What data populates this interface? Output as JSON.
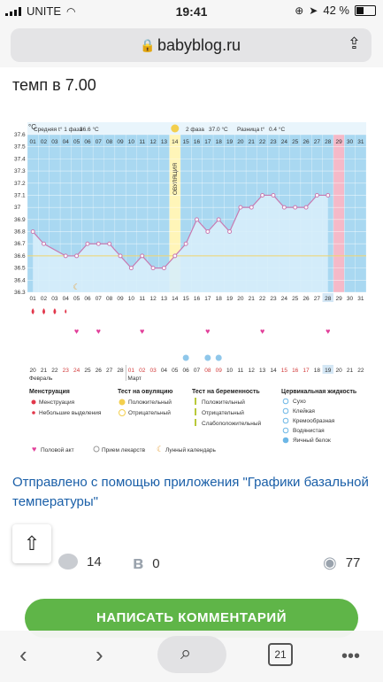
{
  "status": {
    "carrier": "UNITE",
    "time": "19:41",
    "battery": "42 %"
  },
  "browser": {
    "url": "babyblog.ru"
  },
  "article": {
    "snippet": "темп в 7.00"
  },
  "chart_data": {
    "type": "line",
    "ylabel": "°C",
    "ylim": [
      36.3,
      37.6
    ],
    "yticks": [
      "37.6",
      "37.5",
      "37.4",
      "37.3",
      "37.2",
      "37.1",
      "37",
      "36.9",
      "36.8",
      "36.7",
      "36.6",
      "36.5",
      "36.4",
      "36.3"
    ],
    "phase1_label": "Средняя t° 1 фаза",
    "phase1_value": "36.6 °C",
    "phase2_label": "2 фаза",
    "phase2_value": "37.0 °C",
    "diff_label": "Разница t°",
    "diff_value": "0.4 °C",
    "ovulation_label": "ОВУЛЯЦИЯ",
    "cycle_days": [
      "01",
      "02",
      "03",
      "04",
      "05",
      "06",
      "07",
      "08",
      "09",
      "10",
      "11",
      "12",
      "13",
      "14",
      "15",
      "16",
      "17",
      "18",
      "19",
      "20",
      "21",
      "22",
      "23",
      "24",
      "25",
      "26",
      "27",
      "28",
      "29",
      "30",
      "31"
    ],
    "dates": [
      "20",
      "21",
      "22",
      "23",
      "24",
      "25",
      "26",
      "27",
      "28",
      "01",
      "02",
      "03",
      "04",
      "05",
      "06",
      "07",
      "08",
      "09",
      "10",
      "11",
      "12",
      "13",
      "14",
      "15",
      "16",
      "17",
      "18",
      "19",
      "20",
      "21",
      "22"
    ],
    "month1": "Февраль",
    "month2": "Март",
    "temps": [
      36.8,
      36.7,
      null,
      36.6,
      36.6,
      36.7,
      36.7,
      36.7,
      36.6,
      36.5,
      36.6,
      36.5,
      36.5,
      36.6,
      36.7,
      36.9,
      36.8,
      36.9,
      36.8,
      37.0,
      37.0,
      37.1,
      37.1,
      37.0,
      37.0,
      37.0,
      37.1,
      37.1,
      null,
      null,
      null
    ],
    "coverline": 36.6,
    "ovulation_day": 14,
    "today_day": 28,
    "period_next_day": 29,
    "legend": {
      "menstruation_title": "Менструация",
      "menstruation_items": [
        "Менструация",
        "Небольшие выделения"
      ],
      "ovulation_test_title": "Тест на овуляцию",
      "ovulation_test_items": [
        "Положительный",
        "Отрицательный"
      ],
      "pregnancy_test_title": "Тест на беременность",
      "pregnancy_test_items": [
        "Положительный",
        "Отрицательный",
        "Слабоположительный"
      ],
      "cervical_title": "Цервикальная жидкость",
      "cervical_items": [
        "Сухо",
        "Клейкая",
        "Кремообразная",
        "Водянистая",
        "Яичный белок"
      ],
      "bottom_items": [
        "Половой акт",
        "Прием лекарств",
        "Лунный календарь"
      ]
    },
    "colors": {
      "bg": "#a9d8f1",
      "ovulation": "#fff5b8",
      "today": "#d4e7f5",
      "period": "#f5b9c8",
      "line": "#c87ab1",
      "coverline": "#f0d46c"
    }
  },
  "post": {
    "sent_from": "Отправлено с помощью приложения \"Графики базальной температуры\"",
    "comments_count": "14",
    "likes_count": "0",
    "views_count": "77",
    "comment_button": "НАПИСАТЬ КОММЕНТАРИЙ"
  },
  "toolbar": {
    "tabs_count": "21"
  }
}
